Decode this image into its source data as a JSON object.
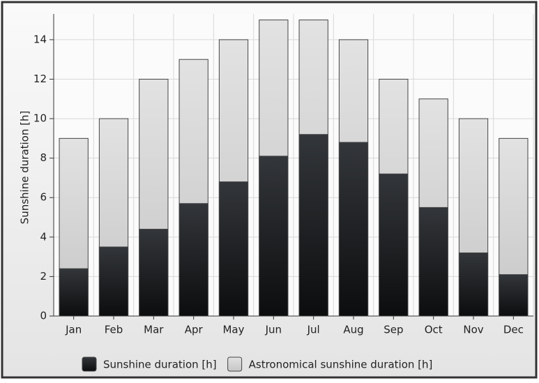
{
  "chart_data": {
    "type": "bar",
    "ylabel": "Sunshine duration [h]",
    "categories": [
      "Jan",
      "Feb",
      "Mar",
      "Apr",
      "May",
      "Jun",
      "Jul",
      "Aug",
      "Sep",
      "Oct",
      "Nov",
      "Dec"
    ],
    "series": [
      {
        "name": "Astronomical sunshine duration [h]",
        "color": "#d2d2d2",
        "values": [
          9,
          10,
          12,
          13,
          14,
          15,
          15,
          14,
          12,
          11,
          10,
          9
        ]
      },
      {
        "name": "Sunshine duration [h]",
        "color": "#1e2022",
        "values": [
          2.4,
          3.5,
          4.4,
          5.7,
          6.8,
          8.1,
          9.2,
          8.8,
          7.2,
          5.5,
          3.2,
          2.1
        ]
      }
    ],
    "overlap": true,
    "ylim": [
      0,
      15
    ],
    "yticks": [
      0,
      2,
      4,
      6,
      8,
      10,
      12,
      14
    ],
    "grid": true,
    "legend": "bottom"
  }
}
